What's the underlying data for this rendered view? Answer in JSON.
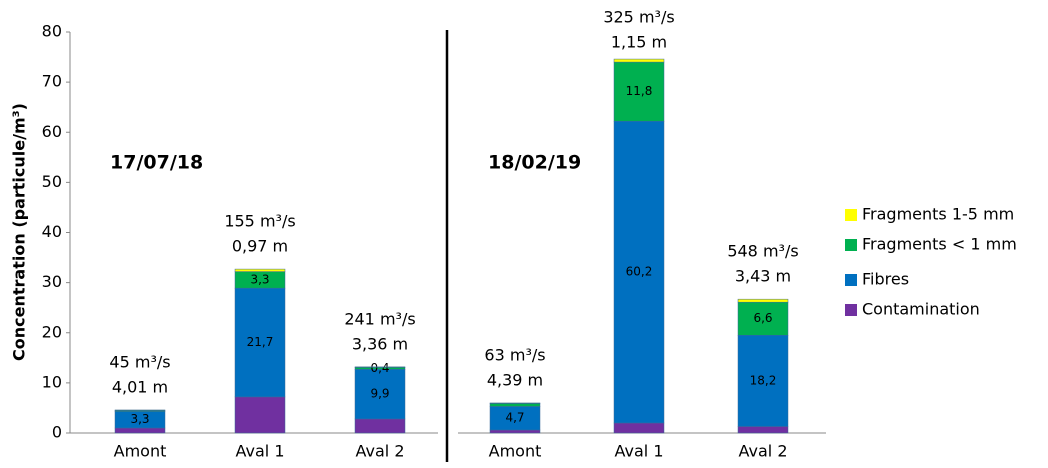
{
  "chart_data": {
    "type": "stacked_bar",
    "y_label": "Concentration (particule/m³)",
    "categories": [
      "Amont",
      "Aval 1",
      "Aval 2",
      "Amont",
      "Aval 1",
      "Aval 2"
    ],
    "group_labels": [
      "17/07/18",
      "18/02/19"
    ],
    "annotations": [
      [
        "45 m³/s",
        "4,01 m"
      ],
      [
        "155 m³/s",
        "0,97 m"
      ],
      [
        "241 m³/s",
        "3,36 m"
      ],
      [
        "63 m³/s",
        "4,39 m"
      ],
      [
        "325 m³/s",
        "1,15 m"
      ],
      [
        "548 m³/s",
        "3,43 m"
      ]
    ],
    "series": [
      {
        "name": "Contamination",
        "color": "#7030a0",
        "values": [
          1.0,
          7.2,
          2.8,
          0.6,
          2.0,
          1.3
        ]
      },
      {
        "name": "Fibres",
        "color": "#0070c0",
        "values": [
          3.3,
          21.7,
          9.9,
          4.7,
          60.2,
          18.2
        ],
        "value_labels": [
          "3,3",
          "21,7",
          "9,9",
          "4,7",
          "60,2",
          "18,2"
        ],
        "label_color": "#ffffff"
      },
      {
        "name": "Fragments < 1 mm",
        "color": "#00b050",
        "values": [
          0.2,
          3.3,
          0.4,
          0.6,
          11.8,
          6.6
        ],
        "value_labels": [
          null,
          "3,3",
          "0,4",
          null,
          "11,8",
          "6,6"
        ],
        "label_color": "#000000"
      },
      {
        "name": "Fragments 1-5 mm",
        "color": "#ffff00",
        "values": [
          0.1,
          0.5,
          0.1,
          0.1,
          0.6,
          0.6
        ]
      }
    ],
    "ylim": [
      0,
      80
    ],
    "yticks": [
      0,
      10,
      20,
      30,
      40,
      50,
      60,
      70,
      80
    ],
    "grid": false,
    "legend": "right"
  }
}
